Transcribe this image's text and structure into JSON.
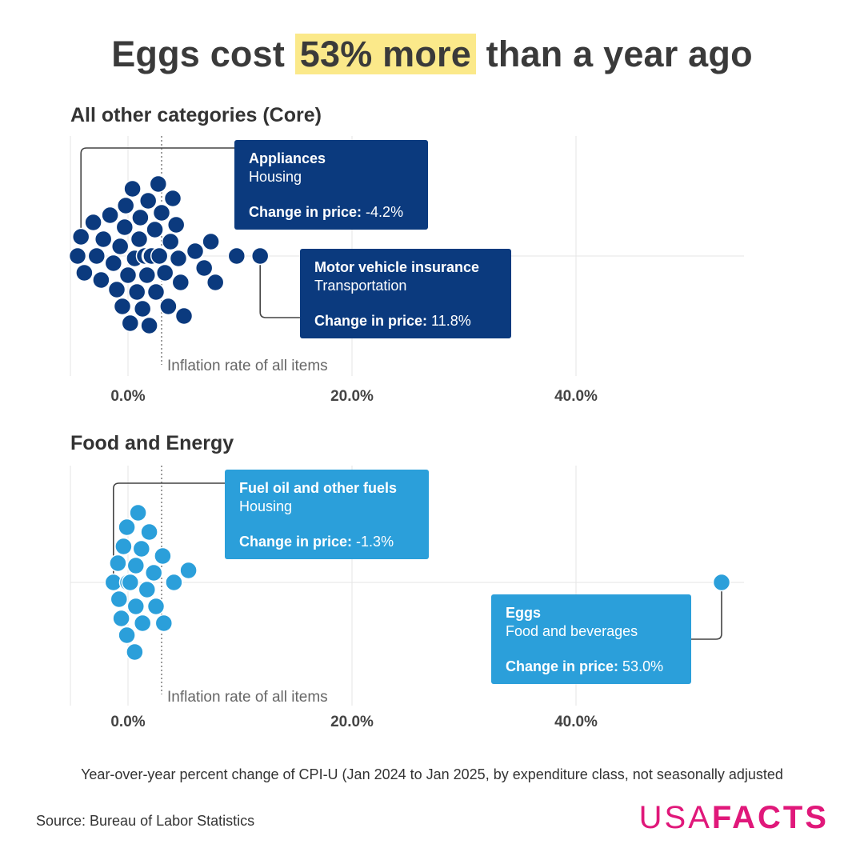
{
  "header": {
    "title_before": "Eggs cost ",
    "title_highlight": "53% more",
    "title_after": " than a year ago"
  },
  "colors": {
    "core_dot": "#0b3a7e",
    "core_callout": "#0b3a7e",
    "food_dot": "#2b9fda",
    "food_callout": "#2b9fda",
    "highlight": "#fbe98a",
    "brand": "#e0187a"
  },
  "chart_data": [
    {
      "type": "scatter",
      "title": "All other categories (Core)",
      "x_ticks": [
        "0.0%",
        "20.0%",
        "40.0%"
      ],
      "x_tick_values": [
        0,
        20,
        40
      ],
      "xlim": [
        -5,
        55
      ],
      "reference_line": {
        "value": 3.0,
        "label": "Inflation rate of all items"
      },
      "points": [
        -4.5,
        -3.9,
        -4.2,
        -3.1,
        -2.8,
        -2.4,
        -2.2,
        -1.6,
        -1.3,
        -1.0,
        -0.7,
        -0.5,
        -0.3,
        -0.2,
        0.0,
        0.2,
        0.4,
        0.6,
        0.8,
        1.0,
        1.1,
        1.3,
        1.5,
        1.7,
        1.8,
        1.9,
        2.0,
        2.1,
        2.4,
        2.5,
        2.7,
        2.8,
        3.0,
        3.3,
        3.6,
        3.8,
        4.0,
        4.3,
        4.5,
        4.7,
        5.0,
        6.0,
        6.8,
        7.4,
        7.8,
        9.7,
        11.8
      ],
      "callouts": [
        {
          "name": "Appliances",
          "category": "Housing",
          "change_label": "Change in price:",
          "change_value": "-4.2%",
          "x": -4.2
        },
        {
          "name": "Motor vehicle insurance",
          "category": "Transportation",
          "change_label": "Change in price:",
          "change_value": "11.8%",
          "x": 11.8
        }
      ]
    },
    {
      "type": "scatter",
      "title": "Food and Energy",
      "x_ticks": [
        "0.0%",
        "20.0%",
        "40.0%"
      ],
      "x_tick_values": [
        0,
        20,
        40
      ],
      "xlim": [
        -5,
        55
      ],
      "reference_line": {
        "value": 3.0,
        "label": "Inflation rate of all items"
      },
      "points": [
        -1.3,
        -0.9,
        -0.8,
        -0.6,
        -0.4,
        -0.1,
        -0.1,
        0.0,
        0.2,
        0.6,
        0.7,
        0.7,
        0.9,
        1.2,
        1.3,
        1.7,
        1.9,
        2.3,
        2.5,
        3.1,
        3.2,
        4.1,
        5.4,
        53.0
      ],
      "callouts": [
        {
          "name": "Fuel oil and other fuels",
          "category": "Housing",
          "change_label": "Change in price:",
          "change_value": "-1.3%",
          "x": -1.3
        },
        {
          "name": "Eggs",
          "category": "Food and beverages",
          "change_label": "Change in price:",
          "change_value": "53.0%",
          "x": 53.0
        }
      ]
    }
  ],
  "footer": {
    "note": "Year-over-year percent change of CPI-U (Jan 2024 to Jan 2025, by expenditure class, not seasonally adjusted",
    "source": "Source: Bureau of Labor Statistics",
    "logo_part1": "USA",
    "logo_part2": "FACTS"
  }
}
